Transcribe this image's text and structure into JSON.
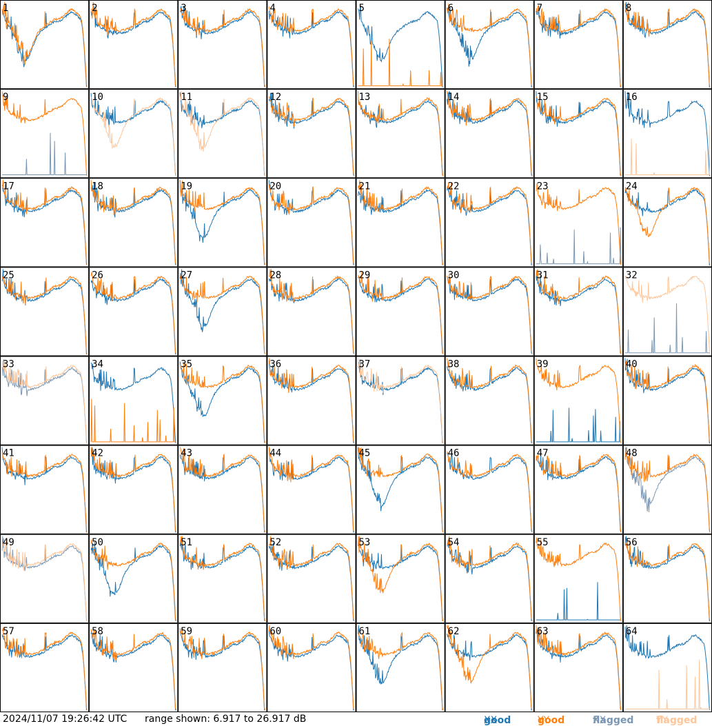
{
  "chart_data": {
    "type": "line",
    "layout": "8x8 small multiples",
    "panels": 64,
    "y_unit": "dB",
    "ylim": [
      6.917,
      26.917
    ],
    "timestamp": "2024/11/07 19:26:42 UTC",
    "range_text": "range shown: 6.917 to 26.917 dB",
    "legend": [
      {
        "word": "good",
        "pol": "XX",
        "color": "#1f77b4"
      },
      {
        "word": "good",
        "pol": "YY",
        "color": "#ff7f0e"
      },
      {
        "word": "flagged",
        "pol": "XX",
        "color": "#7b97b3"
      },
      {
        "word": "flagged",
        "pol": "YY",
        "color": "#ffc69a"
      }
    ],
    "colors": {
      "good_xx": "#1f77b4",
      "good_yy": "#ff7f0e",
      "flagged_xx": "#7b97b3",
      "flagged_yy": "#ffc69a"
    },
    "tiles": [
      {
        "id": "1",
        "xx": "good",
        "yy": "good",
        "xx_shape": "dip",
        "yy_shape": "dip"
      },
      {
        "id": "2",
        "xx": "good",
        "yy": "good"
      },
      {
        "id": "3",
        "xx": "good",
        "yy": "good"
      },
      {
        "id": "4",
        "xx": "good",
        "yy": "good"
      },
      {
        "id": "5",
        "xx": "good",
        "yy": "good",
        "xx_shape": "dip",
        "yy_shape": "dead"
      },
      {
        "id": "6",
        "xx": "good",
        "yy": "good",
        "xx_shape": "dip"
      },
      {
        "id": "7",
        "xx": "good",
        "yy": "good"
      },
      {
        "id": "8",
        "xx": "good",
        "yy": "good"
      },
      {
        "id": "9",
        "xx": "flagged",
        "yy": "good",
        "xx_shape": "dead"
      },
      {
        "id": "10",
        "xx": "good",
        "yy": "flagged",
        "yy_shape": "dip"
      },
      {
        "id": "11",
        "xx": "good",
        "yy": "flagged",
        "yy_shape": "dip"
      },
      {
        "id": "12",
        "xx": "good",
        "yy": "good"
      },
      {
        "id": "13",
        "xx": "good",
        "yy": "good"
      },
      {
        "id": "14",
        "xx": "good",
        "yy": "good"
      },
      {
        "id": "15",
        "xx": "good",
        "yy": "good"
      },
      {
        "id": "16",
        "xx": "good",
        "yy": "flagged",
        "yy_shape": "dead"
      },
      {
        "id": "17",
        "xx": "good",
        "yy": "good"
      },
      {
        "id": "18",
        "xx": "good",
        "yy": "good"
      },
      {
        "id": "19",
        "xx": "good",
        "yy": "good",
        "xx_shape": "dip"
      },
      {
        "id": "20",
        "xx": "good",
        "yy": "good"
      },
      {
        "id": "21",
        "xx": "good",
        "yy": "good"
      },
      {
        "id": "22",
        "xx": "good",
        "yy": "good"
      },
      {
        "id": "23",
        "xx": "flagged",
        "yy": "good",
        "xx_shape": "dead"
      },
      {
        "id": "24",
        "xx": "good",
        "yy": "good",
        "yy_shape": "dip"
      },
      {
        "id": "25",
        "xx": "good",
        "yy": "good"
      },
      {
        "id": "26",
        "xx": "good",
        "yy": "good"
      },
      {
        "id": "27",
        "xx": "good",
        "yy": "good",
        "xx_shape": "dip"
      },
      {
        "id": "28",
        "xx": "good",
        "yy": "good"
      },
      {
        "id": "29",
        "xx": "good",
        "yy": "good"
      },
      {
        "id": "30",
        "xx": "good",
        "yy": "good"
      },
      {
        "id": "31",
        "xx": "good",
        "yy": "good"
      },
      {
        "id": "32",
        "xx": "flagged",
        "yy": "flagged",
        "xx_shape": "dead"
      },
      {
        "id": "33",
        "xx": "flagged",
        "yy": "flagged"
      },
      {
        "id": "34",
        "xx": "good",
        "yy": "good",
        "yy_shape": "dead"
      },
      {
        "id": "35",
        "xx": "good",
        "yy": "good",
        "xx_shape": "dip"
      },
      {
        "id": "36",
        "xx": "good",
        "yy": "good"
      },
      {
        "id": "37",
        "xx": "good",
        "yy": "flagged"
      },
      {
        "id": "38",
        "xx": "good",
        "yy": "good"
      },
      {
        "id": "39",
        "xx": "good",
        "yy": "good",
        "xx_shape": "dead"
      },
      {
        "id": "40",
        "xx": "good",
        "yy": "good"
      },
      {
        "id": "41",
        "xx": "good",
        "yy": "good"
      },
      {
        "id": "42",
        "xx": "good",
        "yy": "good"
      },
      {
        "id": "43",
        "xx": "good",
        "yy": "good"
      },
      {
        "id": "44",
        "xx": "good",
        "yy": "good"
      },
      {
        "id": "45",
        "xx": "good",
        "yy": "good",
        "xx_shape": "dip"
      },
      {
        "id": "46",
        "xx": "good",
        "yy": "good"
      },
      {
        "id": "47",
        "xx": "good",
        "yy": "good"
      },
      {
        "id": "48",
        "xx": "flagged",
        "yy": "good",
        "xx_shape": "dip"
      },
      {
        "id": "49",
        "xx": "flagged",
        "yy": "flagged"
      },
      {
        "id": "50",
        "xx": "good",
        "yy": "good",
        "xx_shape": "dip"
      },
      {
        "id": "51",
        "xx": "good",
        "yy": "good"
      },
      {
        "id": "52",
        "xx": "good",
        "yy": "good"
      },
      {
        "id": "53",
        "xx": "good",
        "yy": "good",
        "yy_shape": "dip"
      },
      {
        "id": "54",
        "xx": "good",
        "yy": "good"
      },
      {
        "id": "55",
        "xx": "good",
        "yy": "good",
        "xx_shape": "dead"
      },
      {
        "id": "56",
        "xx": "good",
        "yy": "good"
      },
      {
        "id": "57",
        "xx": "good",
        "yy": "good"
      },
      {
        "id": "58",
        "xx": "good",
        "yy": "good"
      },
      {
        "id": "59",
        "xx": "good",
        "yy": "good"
      },
      {
        "id": "60",
        "xx": "good",
        "yy": "good"
      },
      {
        "id": "61",
        "xx": "good",
        "yy": "good",
        "xx_shape": "dip"
      },
      {
        "id": "62",
        "xx": "good",
        "yy": "good",
        "yy_shape": "dip"
      },
      {
        "id": "63",
        "xx": "good",
        "yy": "good"
      },
      {
        "id": "64",
        "xx": "good",
        "yy": "flagged",
        "yy_shape": "dead"
      }
    ]
  }
}
